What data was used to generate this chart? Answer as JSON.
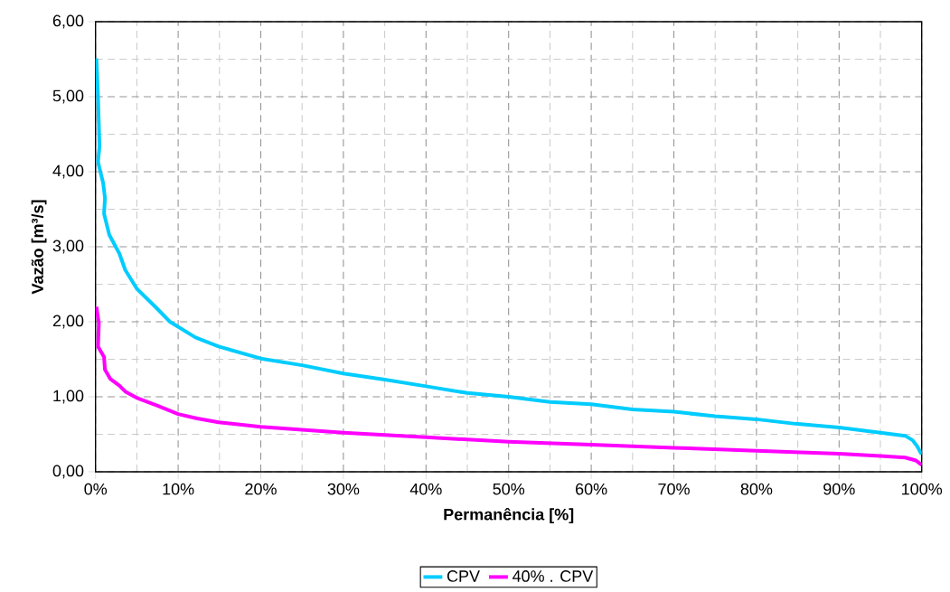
{
  "chart_data": {
    "type": "line",
    "xlabel": "Permanência [%]",
    "ylabel": "Vazão [m³/s]",
    "xlim": [
      0,
      100
    ],
    "ylim": [
      0,
      6
    ],
    "xticks": [
      {
        "value": 0,
        "label": "0%"
      },
      {
        "value": 5,
        "label": null
      },
      {
        "value": 10,
        "label": "10%"
      },
      {
        "value": 15,
        "label": null
      },
      {
        "value": 20,
        "label": "20%"
      },
      {
        "value": 25,
        "label": null
      },
      {
        "value": 30,
        "label": "30%"
      },
      {
        "value": 35,
        "label": null
      },
      {
        "value": 40,
        "label": "40%"
      },
      {
        "value": 45,
        "label": null
      },
      {
        "value": 50,
        "label": "50%"
      },
      {
        "value": 55,
        "label": null
      },
      {
        "value": 60,
        "label": "60%"
      },
      {
        "value": 65,
        "label": null
      },
      {
        "value": 70,
        "label": "70%"
      },
      {
        "value": 75,
        "label": null
      },
      {
        "value": 80,
        "label": "80%"
      },
      {
        "value": 85,
        "label": null
      },
      {
        "value": 90,
        "label": "90%"
      },
      {
        "value": 95,
        "label": null
      },
      {
        "value": 100,
        "label": "100%"
      }
    ],
    "yticks": [
      {
        "value": 0,
        "label": "0,00"
      },
      {
        "value": 0.5,
        "label": null
      },
      {
        "value": 1,
        "label": "1,00"
      },
      {
        "value": 1.5,
        "label": null
      },
      {
        "value": 2,
        "label": "2,00"
      },
      {
        "value": 2.5,
        "label": null
      },
      {
        "value": 3,
        "label": "3,00"
      },
      {
        "value": 3.5,
        "label": null
      },
      {
        "value": 4,
        "label": "4,00"
      },
      {
        "value": 4.5,
        "label": null
      },
      {
        "value": 5,
        "label": "5,00"
      },
      {
        "value": 5.5,
        "label": null
      },
      {
        "value": 6,
        "label": "6,00"
      }
    ],
    "grid": true,
    "legend": "bottom",
    "marker": "none",
    "line_style": "solid",
    "series": [
      {
        "name": "CPV",
        "color": "#00ccff",
        "x": [
          0.1,
          0.3,
          0.48,
          0.3,
          0.92,
          1.14,
          1.03,
          1.66,
          2.88,
          3.6,
          5,
          7.4,
          9,
          12.1,
          14.9,
          20,
          25,
          30,
          35,
          40,
          45,
          50,
          55,
          60,
          65,
          70,
          75,
          80,
          84.7,
          90,
          95,
          98,
          98.9,
          99.45,
          100
        ],
        "values": [
          5.51,
          5.0,
          4.34,
          4.13,
          3.85,
          3.65,
          3.44,
          3.16,
          2.91,
          2.69,
          2.44,
          2.18,
          2.0,
          1.79,
          1.67,
          1.51,
          1.42,
          1.31,
          1.23,
          1.14,
          1.05,
          1.0,
          0.93,
          0.9,
          0.83,
          0.8,
          0.74,
          0.7,
          0.64,
          0.59,
          0.52,
          0.48,
          0.42,
          0.34,
          0.23
        ]
      },
      {
        "name": "40% . CPV",
        "color": "#ff00ff",
        "x": [
          0.1,
          0.4,
          0.3,
          1.03,
          1.14,
          1.77,
          2.88,
          3.6,
          5.1,
          7.5,
          10,
          12.3,
          14.9,
          20,
          30,
          40,
          50,
          60,
          70,
          80,
          90,
          95,
          98,
          99.3,
          100
        ],
        "values": [
          2.2,
          1.98,
          1.67,
          1.53,
          1.36,
          1.24,
          1.15,
          1.07,
          0.98,
          0.88,
          0.77,
          0.71,
          0.66,
          0.6,
          0.52,
          0.46,
          0.4,
          0.36,
          0.32,
          0.28,
          0.24,
          0.21,
          0.19,
          0.15,
          0.09
        ]
      }
    ]
  }
}
